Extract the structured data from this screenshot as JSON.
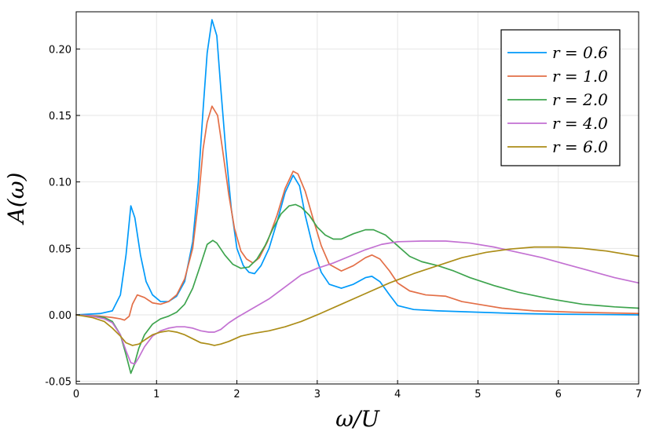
{
  "chart_data": {
    "type": "line",
    "title": "",
    "xlabel": "ω/U",
    "ylabel": "A(ω)",
    "xlim": [
      0,
      7
    ],
    "ylim": [
      -0.052,
      0.228
    ],
    "xticks": [
      0,
      1,
      2,
      3,
      4,
      5,
      6,
      7
    ],
    "xtick_labels": [
      "0",
      "1",
      "2",
      "3",
      "4",
      "5",
      "6",
      "7"
    ],
    "yticks": [
      -0.05,
      0.0,
      0.05,
      0.1,
      0.15,
      0.2
    ],
    "ytick_labels": [
      "-0.05",
      "0.00",
      "0.05",
      "0.10",
      "0.15",
      "0.20"
    ],
    "grid": true,
    "legend_position": "top-right",
    "series": [
      {
        "name": "r = 0.6",
        "color": "#009AFA",
        "points": [
          [
            0,
            0
          ],
          [
            0.3,
            0.001
          ],
          [
            0.45,
            0.003
          ],
          [
            0.55,
            0.015
          ],
          [
            0.62,
            0.045
          ],
          [
            0.68,
            0.082
          ],
          [
            0.73,
            0.073
          ],
          [
            0.8,
            0.045
          ],
          [
            0.87,
            0.025
          ],
          [
            0.95,
            0.015
          ],
          [
            1.05,
            0.01
          ],
          [
            1.15,
            0.01
          ],
          [
            1.25,
            0.014
          ],
          [
            1.35,
            0.025
          ],
          [
            1.45,
            0.055
          ],
          [
            1.52,
            0.1
          ],
          [
            1.58,
            0.155
          ],
          [
            1.63,
            0.197
          ],
          [
            1.69,
            0.222
          ],
          [
            1.75,
            0.21
          ],
          [
            1.8,
            0.17
          ],
          [
            1.86,
            0.125
          ],
          [
            1.93,
            0.08
          ],
          [
            2.0,
            0.05
          ],
          [
            2.08,
            0.037
          ],
          [
            2.15,
            0.032
          ],
          [
            2.22,
            0.031
          ],
          [
            2.3,
            0.037
          ],
          [
            2.4,
            0.05
          ],
          [
            2.5,
            0.07
          ],
          [
            2.6,
            0.092
          ],
          [
            2.7,
            0.105
          ],
          [
            2.78,
            0.097
          ],
          [
            2.85,
            0.075
          ],
          [
            2.95,
            0.05
          ],
          [
            3.05,
            0.032
          ],
          [
            3.15,
            0.023
          ],
          [
            3.3,
            0.02
          ],
          [
            3.45,
            0.023
          ],
          [
            3.6,
            0.028
          ],
          [
            3.68,
            0.029
          ],
          [
            3.78,
            0.025
          ],
          [
            3.9,
            0.015
          ],
          [
            4.0,
            0.007
          ],
          [
            4.2,
            0.004
          ],
          [
            4.5,
            0.003
          ],
          [
            5.0,
            0.002
          ],
          [
            5.5,
            0.001
          ],
          [
            6.0,
            0.0005
          ],
          [
            7.0,
            0
          ]
        ]
      },
      {
        "name": "r = 1.0",
        "color": "#E36F47",
        "points": [
          [
            0,
            0
          ],
          [
            0.3,
            -0.001
          ],
          [
            0.45,
            -0.002
          ],
          [
            0.55,
            -0.003
          ],
          [
            0.6,
            -0.004
          ],
          [
            0.66,
            -0.001
          ],
          [
            0.7,
            0.008
          ],
          [
            0.76,
            0.015
          ],
          [
            0.85,
            0.013
          ],
          [
            0.95,
            0.009
          ],
          [
            1.05,
            0.008
          ],
          [
            1.15,
            0.01
          ],
          [
            1.25,
            0.015
          ],
          [
            1.35,
            0.027
          ],
          [
            1.45,
            0.05
          ],
          [
            1.52,
            0.085
          ],
          [
            1.58,
            0.125
          ],
          [
            1.63,
            0.145
          ],
          [
            1.69,
            0.157
          ],
          [
            1.76,
            0.15
          ],
          [
            1.82,
            0.125
          ],
          [
            1.9,
            0.09
          ],
          [
            1.97,
            0.065
          ],
          [
            2.05,
            0.048
          ],
          [
            2.12,
            0.042
          ],
          [
            2.2,
            0.039
          ],
          [
            2.28,
            0.043
          ],
          [
            2.38,
            0.055
          ],
          [
            2.5,
            0.075
          ],
          [
            2.6,
            0.095
          ],
          [
            2.7,
            0.108
          ],
          [
            2.76,
            0.106
          ],
          [
            2.85,
            0.093
          ],
          [
            2.95,
            0.072
          ],
          [
            3.05,
            0.052
          ],
          [
            3.15,
            0.038
          ],
          [
            3.3,
            0.033
          ],
          [
            3.45,
            0.037
          ],
          [
            3.6,
            0.043
          ],
          [
            3.68,
            0.045
          ],
          [
            3.78,
            0.042
          ],
          [
            3.9,
            0.033
          ],
          [
            4.0,
            0.024
          ],
          [
            4.15,
            0.018
          ],
          [
            4.35,
            0.015
          ],
          [
            4.6,
            0.014
          ],
          [
            4.8,
            0.01
          ],
          [
            5.0,
            0.008
          ],
          [
            5.3,
            0.005
          ],
          [
            5.7,
            0.003
          ],
          [
            6.2,
            0.002
          ],
          [
            7.0,
            0.001
          ]
        ]
      },
      {
        "name": "r = 2.0",
        "color": "#3EA44E",
        "points": [
          [
            0,
            0
          ],
          [
            0.2,
            -0.001
          ],
          [
            0.35,
            -0.002
          ],
          [
            0.45,
            -0.005
          ],
          [
            0.55,
            -0.015
          ],
          [
            0.62,
            -0.03
          ],
          [
            0.68,
            -0.044
          ],
          [
            0.72,
            -0.038
          ],
          [
            0.78,
            -0.025
          ],
          [
            0.85,
            -0.015
          ],
          [
            0.95,
            -0.007
          ],
          [
            1.05,
            -0.003
          ],
          [
            1.15,
            -0.001
          ],
          [
            1.25,
            0.002
          ],
          [
            1.35,
            0.008
          ],
          [
            1.45,
            0.02
          ],
          [
            1.55,
            0.038
          ],
          [
            1.63,
            0.053
          ],
          [
            1.7,
            0.056
          ],
          [
            1.75,
            0.054
          ],
          [
            1.85,
            0.045
          ],
          [
            1.95,
            0.038
          ],
          [
            2.05,
            0.035
          ],
          [
            2.15,
            0.036
          ],
          [
            2.25,
            0.042
          ],
          [
            2.35,
            0.052
          ],
          [
            2.45,
            0.065
          ],
          [
            2.55,
            0.076
          ],
          [
            2.65,
            0.082
          ],
          [
            2.73,
            0.083
          ],
          [
            2.8,
            0.081
          ],
          [
            2.9,
            0.075
          ],
          [
            3.0,
            0.066
          ],
          [
            3.1,
            0.06
          ],
          [
            3.2,
            0.057
          ],
          [
            3.3,
            0.057
          ],
          [
            3.45,
            0.061
          ],
          [
            3.6,
            0.064
          ],
          [
            3.7,
            0.064
          ],
          [
            3.85,
            0.06
          ],
          [
            4.0,
            0.052
          ],
          [
            4.15,
            0.044
          ],
          [
            4.3,
            0.04
          ],
          [
            4.5,
            0.037
          ],
          [
            4.7,
            0.033
          ],
          [
            4.9,
            0.028
          ],
          [
            5.2,
            0.022
          ],
          [
            5.5,
            0.017
          ],
          [
            5.9,
            0.012
          ],
          [
            6.3,
            0.008
          ],
          [
            6.7,
            0.006
          ],
          [
            7.0,
            0.005
          ]
        ]
      },
      {
        "name": "r = 4.0",
        "color": "#C371D2",
        "points": [
          [
            0,
            0
          ],
          [
            0.2,
            -0.001
          ],
          [
            0.35,
            -0.003
          ],
          [
            0.45,
            -0.006
          ],
          [
            0.55,
            -0.015
          ],
          [
            0.62,
            -0.027
          ],
          [
            0.68,
            -0.036
          ],
          [
            0.73,
            -0.037
          ],
          [
            0.78,
            -0.032
          ],
          [
            0.85,
            -0.024
          ],
          [
            0.95,
            -0.016
          ],
          [
            1.05,
            -0.012
          ],
          [
            1.15,
            -0.01
          ],
          [
            1.25,
            -0.009
          ],
          [
            1.35,
            -0.009
          ],
          [
            1.45,
            -0.01
          ],
          [
            1.55,
            -0.012
          ],
          [
            1.65,
            -0.013
          ],
          [
            1.72,
            -0.013
          ],
          [
            1.8,
            -0.011
          ],
          [
            1.9,
            -0.006
          ],
          [
            2.0,
            -0.002
          ],
          [
            2.2,
            0.005
          ],
          [
            2.4,
            0.012
          ],
          [
            2.6,
            0.021
          ],
          [
            2.8,
            0.03
          ],
          [
            3.0,
            0.035
          ],
          [
            3.2,
            0.039
          ],
          [
            3.4,
            0.044
          ],
          [
            3.6,
            0.049
          ],
          [
            3.8,
            0.053
          ],
          [
            4.0,
            0.055
          ],
          [
            4.3,
            0.0555
          ],
          [
            4.6,
            0.0555
          ],
          [
            4.9,
            0.054
          ],
          [
            5.2,
            0.051
          ],
          [
            5.5,
            0.047
          ],
          [
            5.8,
            0.043
          ],
          [
            6.1,
            0.038
          ],
          [
            6.4,
            0.033
          ],
          [
            6.7,
            0.028
          ],
          [
            7.0,
            0.024
          ]
        ]
      },
      {
        "name": "r = 6.0",
        "color": "#AC8D18",
        "points": [
          [
            0,
            0
          ],
          [
            0.2,
            -0.002
          ],
          [
            0.35,
            -0.005
          ],
          [
            0.45,
            -0.01
          ],
          [
            0.55,
            -0.016
          ],
          [
            0.62,
            -0.021
          ],
          [
            0.7,
            -0.023
          ],
          [
            0.78,
            -0.022
          ],
          [
            0.85,
            -0.019
          ],
          [
            0.95,
            -0.015
          ],
          [
            1.05,
            -0.013
          ],
          [
            1.15,
            -0.012
          ],
          [
            1.25,
            -0.013
          ],
          [
            1.35,
            -0.015
          ],
          [
            1.45,
            -0.018
          ],
          [
            1.55,
            -0.021
          ],
          [
            1.65,
            -0.022
          ],
          [
            1.72,
            -0.023
          ],
          [
            1.8,
            -0.022
          ],
          [
            1.9,
            -0.02
          ],
          [
            2.05,
            -0.016
          ],
          [
            2.2,
            -0.014
          ],
          [
            2.4,
            -0.012
          ],
          [
            2.6,
            -0.009
          ],
          [
            2.8,
            -0.005
          ],
          [
            3.0,
            0.0
          ],
          [
            3.3,
            0.008
          ],
          [
            3.6,
            0.016
          ],
          [
            3.9,
            0.024
          ],
          [
            4.2,
            0.031
          ],
          [
            4.5,
            0.037
          ],
          [
            4.8,
            0.043
          ],
          [
            5.1,
            0.047
          ],
          [
            5.4,
            0.0495
          ],
          [
            5.7,
            0.051
          ],
          [
            6.0,
            0.051
          ],
          [
            6.3,
            0.05
          ],
          [
            6.6,
            0.048
          ],
          [
            7.0,
            0.044
          ]
        ]
      }
    ]
  }
}
